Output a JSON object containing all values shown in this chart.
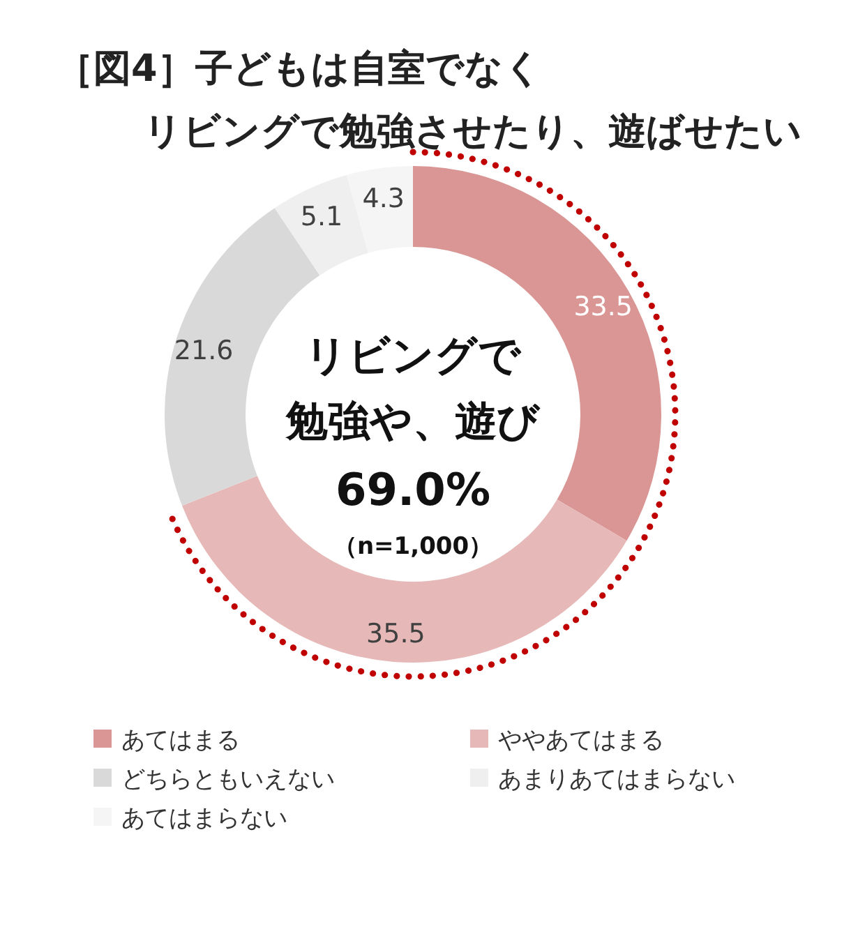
{
  "chart_data": {
    "type": "donut",
    "title": "［図4］子どもは自室でなく",
    "subtitle": "リビングで勉強させたり、遊ばせたい",
    "categories": [
      "あてはまる",
      "ややあてはまる",
      "どちらともいえない",
      "あまりあてはまらない",
      "あてはまらない"
    ],
    "values": [
      33.5,
      35.5,
      21.6,
      5.1,
      4.3
    ],
    "colors": [
      "#d99694",
      "#e6b9b8",
      "#d9d9d9",
      "#efefef",
      "#f5f5f5"
    ],
    "data_labels": true,
    "legend": "bottom",
    "annotations": [
      "リビングで",
      "勉強や、遊び",
      "69.0%",
      "（n=1,000）"
    ]
  }
}
